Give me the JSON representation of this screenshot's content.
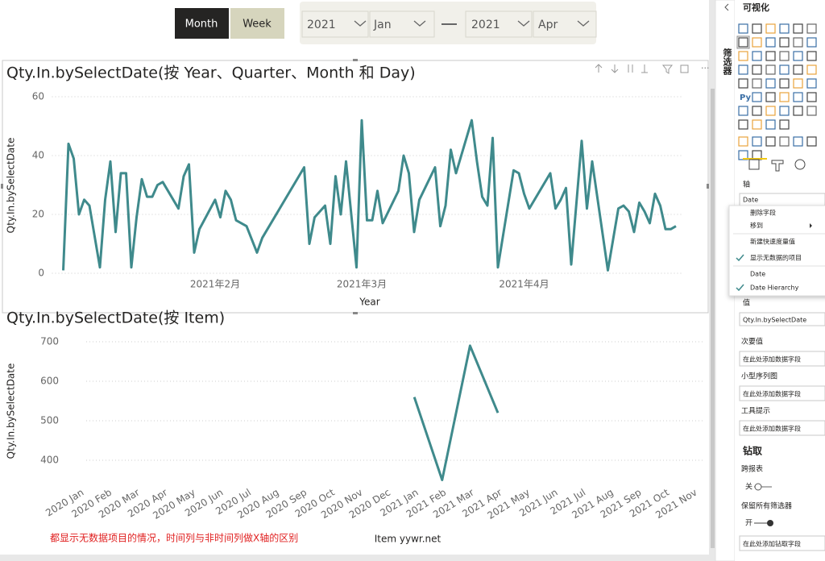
{
  "slicer": {
    "buttons": [
      "Month",
      "Week"
    ],
    "start": [
      "2021",
      "Jan"
    ],
    "end": [
      "2021",
      "Apr"
    ]
  },
  "chart_data": [
    {
      "type": "line",
      "title": "Qty.In.bySelectDate(按 Year、Quarter、Month 和 Day)",
      "ylabel": "Qty.In.bySelectDate",
      "xlabel": "Year",
      "color": "#3f8a8c",
      "grid": true,
      "x": [
        3,
        4,
        5,
        6,
        7,
        8,
        10,
        11,
        12,
        13,
        14,
        15,
        16,
        17,
        18,
        19,
        20,
        21,
        22,
        25,
        26,
        27,
        28,
        29,
        32,
        33,
        34,
        35,
        36,
        38,
        40,
        41,
        49,
        50,
        51,
        53,
        54,
        55,
        56,
        57,
        59,
        60,
        61,
        62,
        63,
        64,
        67,
        68,
        69,
        70,
        71,
        74,
        75,
        76,
        77,
        78,
        81,
        82,
        83,
        84,
        85,
        86,
        89,
        90,
        91,
        92,
        96,
        97,
        98,
        99,
        100,
        102,
        103,
        104,
        107,
        109,
        110,
        111,
        112,
        113,
        114,
        115,
        116,
        117,
        118,
        119,
        120
      ],
      "values": [
        1,
        44,
        39,
        20,
        25,
        23,
        2,
        25,
        38,
        14,
        34,
        34,
        2,
        19,
        32,
        26,
        26,
        30,
        31,
        22,
        33,
        37,
        7,
        15,
        25,
        19,
        28,
        25,
        18,
        16,
        7,
        12,
        36,
        10,
        19,
        23,
        10,
        33,
        20,
        38,
        2,
        52,
        18,
        18,
        28,
        17,
        28,
        40,
        34,
        14,
        25,
        36,
        16,
        23,
        42,
        34,
        52,
        38,
        26,
        23,
        46,
        2,
        35,
        34,
        27,
        22,
        34,
        22,
        25,
        29,
        3,
        45,
        22,
        38,
        1,
        22,
        23,
        21,
        14,
        24,
        21,
        17,
        27,
        23,
        15,
        15,
        16
      ],
      "xlim": [
        -3,
        122
      ],
      "xticks": [
        {
          "value": 32,
          "label": "2021年2月"
        },
        {
          "value": 60,
          "label": "2021年3月"
        },
        {
          "value": 91,
          "label": "2021年4月"
        }
      ],
      "ylim": [
        0,
        60
      ],
      "yticks": [
        0,
        20,
        40,
        60
      ]
    },
    {
      "type": "line",
      "title": "Qty.In.bySelectDate(按 Item)",
      "ylabel": "Qty.In.bySelectDate",
      "xlabel": "Item yywr.net",
      "annotation": "都显示无数据项目的情况，时间列与非时间列做X轴的区别",
      "color": "#3f8a8c",
      "grid": true,
      "categories": [
        "2020 Jan",
        "2020 Feb",
        "2020 Mar",
        "2020 Apr",
        "2020 May",
        "2020 Jun",
        "2020 Jul",
        "2020 Aug",
        "2020 Sep",
        "2020 Oct",
        "2020 Nov",
        "2020 Dec",
        "2021 Jan",
        "2021 Feb",
        "2021 Mar",
        "2021 Apr",
        "2021 May",
        "2021 Jun",
        "2021 Jul",
        "2021 Aug",
        "2021 Sep",
        "2021 Oct",
        "2021 Nov"
      ],
      "values": [
        null,
        null,
        null,
        null,
        null,
        null,
        null,
        null,
        null,
        null,
        null,
        null,
        560,
        350,
        690,
        520,
        null,
        null,
        null,
        null,
        null,
        null,
        null
      ],
      "ylim": [
        340,
        730
      ],
      "yticks": [
        400,
        500,
        600,
        700
      ]
    }
  ],
  "panel": {
    "title": "可视化",
    "filter_tab": "筛选器",
    "py": "Py",
    "axis_label": "轴",
    "axis_field": "Date",
    "menu": [
      "删除字段",
      "移到",
      "新建快速度量值",
      "显示无数据的项目",
      "Date",
      "Date Hierarchy"
    ],
    "values_label": "值",
    "values_field": "Qty.In.bySelectDate",
    "wells": [
      {
        "label": "次要值",
        "placeholder": "在此处添加数据字段"
      },
      {
        "label": "小型序列图",
        "placeholder": "在此处添加数据字段"
      },
      {
        "label": "工具提示",
        "placeholder": "在此处添加数据字段"
      }
    ],
    "drill": {
      "title": "钻取",
      "cross_report": "跨报表",
      "off": "关",
      "keep_filters": "保留所有筛选器",
      "on": "开",
      "placeholder": "在此处添加钻取字段"
    }
  }
}
